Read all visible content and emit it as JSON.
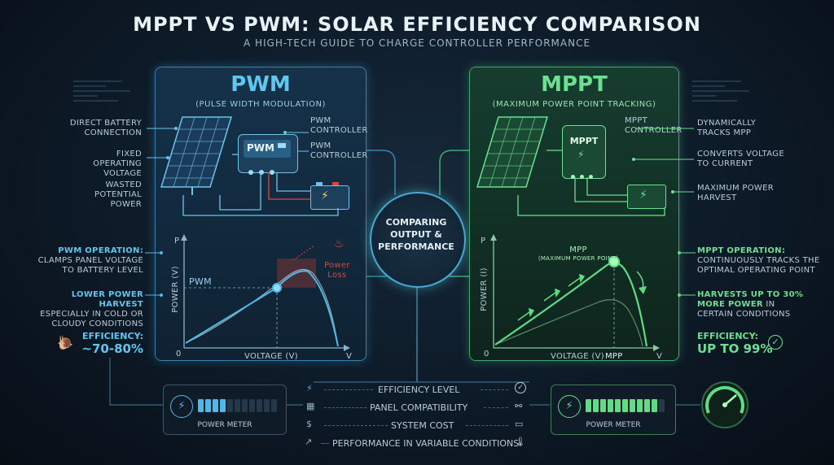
{
  "header": {
    "title": "MPPT VS PWM: SOLAR EFFICIENCY COMPARISON",
    "subtitle": "A HIGH-TECH GUIDE TO CHARGE CONTROLLER PERFORMANCE"
  },
  "pwm": {
    "title": "PWM",
    "subtitle": "(PULSE WIDTH MODULATION)",
    "controller_text": "PWM",
    "controller_label": [
      "PWM",
      "CONTROLLER"
    ],
    "controller_label_2": [
      "PWM",
      "CONTROLLER"
    ],
    "left_labels": [
      [
        "DIRECT BATTERY",
        "CONNECTION"
      ],
      [
        "FIXED OPERATING",
        "VOLTAGE"
      ],
      [
        "WASTED",
        "POTENTIAL",
        "POWER"
      ]
    ],
    "graph": {
      "y_axis": "P",
      "y_label": "POWER (V)",
      "x_label": "VOLTAGE (V)",
      "x_end": "V",
      "origin": "0",
      "line_label": "PWM",
      "loss_label": [
        "Power",
        "Loss"
      ]
    },
    "operation_title": "PWM OPERATION:",
    "operation_text": [
      "CLAMPS PANEL VOLTAGE",
      "TO BATTERY LEVEL"
    ],
    "harvest_title": "LOWER POWER HARVEST",
    "harvest_text": [
      "ESPECIALLY IN COLD OR",
      "CLOUDY CONDITIONS"
    ],
    "efficiency_label": "EFFICIENCY:",
    "efficiency_value": "~70-80%",
    "meter_label": "POWER METER",
    "meter_level": 0.4
  },
  "mppt": {
    "title": "MPPT",
    "subtitle": "(MAXIMUM POWER POINT TRACKING)",
    "controller_text": "MPPT",
    "controller_label": [
      "MPPT",
      "CONTROLLER"
    ],
    "right_labels": [
      [
        "DYNAMICALLY",
        "TRACKS MPP"
      ],
      [
        "CONVERTS VOLTAGE",
        "TO CURRENT"
      ],
      [
        "MAXIMUM POWER",
        "HARVEST"
      ]
    ],
    "graph": {
      "y_axis": "P",
      "y_label": "POWER (I)",
      "x_label": "VOLTAGE (V)",
      "x_end": "V",
      "origin": "0",
      "mpp_label": "MPP",
      "mpp_sub": "(MAXIMUM POWER POINT)",
      "mpp_x_label": "MPP"
    },
    "operation_title": "MPPT OPERATION:",
    "operation_text": [
      "CONTINUOUSLY TRACKS THE",
      "OPTIMAL OPERATING POINT"
    ],
    "harvest_title": "HARVESTS UP TO 30%",
    "harvest_text": [
      "MORE POWER",
      "IN",
      "CERTAIN CONDITIONS"
    ],
    "efficiency_label": "EFFICIENCY:",
    "efficiency_value": "UP TO 99%",
    "meter_label": "POWER METER",
    "meter_level": 0.9
  },
  "center": {
    "text": [
      "COMPARING",
      "OUTPUT &",
      "PERFORMANCE"
    ]
  },
  "comparison": [
    {
      "label": "EFFICIENCY LEVEL",
      "icon": "lightning-icon",
      "end_icon": "check-icon"
    },
    {
      "label": "PANEL COMPATIBILITY",
      "icon": "panel-icon",
      "end_icon": "link-icon"
    },
    {
      "label": "SYSTEM COST",
      "icon": "dollar-icon",
      "end_icon": "battery-icon"
    },
    {
      "label": "PERFORMANCE IN VARIABLE CONDITIONS",
      "icon": "trend-icon",
      "end_icon": "thermometer-icon"
    }
  ],
  "colors": {
    "pwm": "#4fb8e8",
    "mppt": "#5fdc85",
    "loss": "#e0453a"
  }
}
